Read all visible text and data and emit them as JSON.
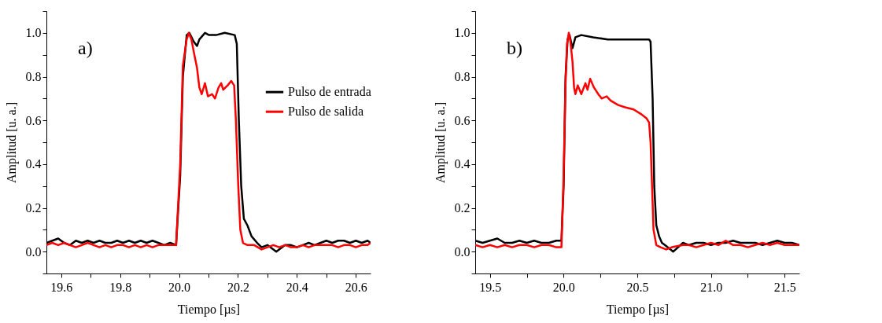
{
  "chart_data": [
    {
      "type": "line",
      "xlabel": "Tiempo [µs]",
      "ylabel": "Amplitud [u. a.]",
      "annotations": [
        "a)"
      ],
      "legend": "top right",
      "grid": false,
      "xlim": [
        19.55,
        20.65
      ],
      "ylim": [
        -0.1,
        1.1
      ],
      "xticks": [
        19.6,
        {
          "value": 19.7,
          "label": null
        },
        19.8,
        {
          "value": 19.9,
          "label": null
        },
        {
          "value": 20.0,
          "label": "20.0"
        },
        {
          "value": 20.1,
          "label": null
        },
        20.2,
        {
          "value": 20.3,
          "label": null
        },
        20.4,
        {
          "value": 20.5,
          "label": null
        },
        20.6
      ],
      "yticks": [
        {
          "value": -0.1,
          "label": null
        },
        {
          "value": 0,
          "label": "0.0"
        },
        {
          "value": 0.1,
          "label": null
        },
        0.2,
        {
          "value": 0.3,
          "label": null
        },
        0.4,
        {
          "value": 0.5,
          "label": null
        },
        0.6,
        {
          "value": 0.7,
          "label": null
        },
        0.8,
        {
          "value": 0.9,
          "label": null
        },
        {
          "value": 1.0,
          "label": "1.0"
        },
        {
          "value": 1.1,
          "label": null
        }
      ],
      "series": [
        {
          "name": "Pulso de entrada",
          "color": "#000000",
          "x": [
            19.55,
            19.57,
            19.59,
            19.61,
            19.63,
            19.65,
            19.67,
            19.69,
            19.71,
            19.73,
            19.75,
            19.77,
            19.79,
            19.81,
            19.83,
            19.85,
            19.87,
            19.89,
            19.91,
            19.93,
            19.95,
            19.97,
            19.99,
            20.004,
            20.013,
            20.026,
            20.035,
            20.05,
            20.061,
            20.069,
            20.088,
            20.102,
            20.126,
            20.155,
            20.189,
            20.196,
            20.203,
            20.211,
            20.22,
            20.232,
            20.246,
            20.265,
            20.28,
            20.3,
            20.33,
            20.36,
            20.38,
            20.4,
            20.42,
            20.44,
            20.46,
            20.48,
            20.5,
            20.52,
            20.54,
            20.56,
            20.58,
            20.6,
            20.62,
            20.64,
            20.65
          ],
          "values": [
            0.04,
            0.05,
            0.06,
            0.04,
            0.03,
            0.05,
            0.04,
            0.05,
            0.04,
            0.05,
            0.04,
            0.04,
            0.05,
            0.04,
            0.05,
            0.04,
            0.05,
            0.04,
            0.05,
            0.04,
            0.03,
            0.04,
            0.03,
            0.35,
            0.8,
            0.99,
            1.0,
            0.96,
            0.94,
            0.97,
            1.0,
            0.99,
            0.99,
            1.0,
            0.99,
            0.95,
            0.6,
            0.3,
            0.15,
            0.12,
            0.07,
            0.04,
            0.02,
            0.03,
            0.0,
            0.03,
            0.03,
            0.02,
            0.03,
            0.04,
            0.03,
            0.04,
            0.05,
            0.04,
            0.05,
            0.05,
            0.04,
            0.05,
            0.04,
            0.05,
            0.04
          ]
        },
        {
          "name": "Pulso de salida",
          "color": "#ff0000",
          "x": [
            19.55,
            19.57,
            19.59,
            19.61,
            19.63,
            19.65,
            19.67,
            19.69,
            19.71,
            19.73,
            19.75,
            19.77,
            19.79,
            19.81,
            19.83,
            19.85,
            19.87,
            19.89,
            19.91,
            19.93,
            19.95,
            19.97,
            19.99,
            20.004,
            20.013,
            20.026,
            20.033,
            20.042,
            20.052,
            20.061,
            20.069,
            20.077,
            20.088,
            20.098,
            20.112,
            20.122,
            20.134,
            20.143,
            20.15,
            20.165,
            20.177,
            20.187,
            20.193,
            20.201,
            20.208,
            20.217,
            20.232,
            20.255,
            20.28,
            20.3,
            20.32,
            20.34,
            20.36,
            20.38,
            20.4,
            20.42,
            20.44,
            20.46,
            20.48,
            20.5,
            20.52,
            20.54,
            20.56,
            20.58,
            20.6,
            20.62,
            20.64,
            20.65
          ],
          "values": [
            0.03,
            0.04,
            0.03,
            0.04,
            0.03,
            0.02,
            0.03,
            0.04,
            0.03,
            0.02,
            0.03,
            0.02,
            0.03,
            0.03,
            0.02,
            0.03,
            0.02,
            0.03,
            0.02,
            0.03,
            0.03,
            0.03,
            0.03,
            0.4,
            0.85,
            0.97,
            1.0,
            0.97,
            0.9,
            0.84,
            0.75,
            0.72,
            0.77,
            0.71,
            0.72,
            0.7,
            0.75,
            0.77,
            0.74,
            0.76,
            0.78,
            0.76,
            0.6,
            0.3,
            0.1,
            0.04,
            0.03,
            0.03,
            0.01,
            0.02,
            0.03,
            0.02,
            0.03,
            0.02,
            0.02,
            0.03,
            0.02,
            0.03,
            0.03,
            0.03,
            0.03,
            0.02,
            0.03,
            0.03,
            0.02,
            0.03,
            0.03,
            0.04
          ]
        }
      ]
    },
    {
      "type": "line",
      "xlabel": "Tiempo [µs]",
      "ylabel": "Amplitud [u. a.]",
      "annotations": [
        "b)"
      ],
      "legend": "top right",
      "grid": false,
      "xlim": [
        19.4,
        21.6
      ],
      "ylim": [
        -0.1,
        1.1
      ],
      "xticks": [
        19.5,
        {
          "value": 19.75,
          "label": null
        },
        {
          "value": 20.0,
          "label": "20.0"
        },
        {
          "value": 20.25,
          "label": null
        },
        20.5,
        {
          "value": 20.75,
          "label": null
        },
        {
          "value": 21.0,
          "label": "21.0"
        },
        {
          "value": 21.25,
          "label": null
        },
        21.5
      ],
      "yticks": [
        {
          "value": -0.1,
          "label": null
        },
        {
          "value": 0,
          "label": "0.0"
        },
        {
          "value": 0.1,
          "label": null
        },
        0.2,
        {
          "value": 0.3,
          "label": null
        },
        0.4,
        {
          "value": 0.5,
          "label": null
        },
        0.6,
        {
          "value": 0.7,
          "label": null
        },
        0.8,
        {
          "value": 0.9,
          "label": null
        },
        {
          "value": 1.0,
          "label": "1.0"
        },
        {
          "value": 1.1,
          "label": null
        }
      ],
      "series": [
        {
          "name": "Pulso de entrada",
          "color": "#000000",
          "x": [
            19.4,
            19.45,
            19.5,
            19.55,
            19.6,
            19.65,
            19.7,
            19.75,
            19.8,
            19.85,
            19.9,
            19.95,
            19.985,
            20.0,
            20.013,
            20.027,
            20.04,
            20.06,
            20.08,
            20.12,
            20.2,
            20.3,
            20.4,
            20.5,
            20.58,
            20.59,
            20.604,
            20.615,
            20.629,
            20.648,
            20.667,
            20.687,
            20.744,
            20.81,
            20.85,
            20.9,
            20.95,
            21.0,
            21.05,
            21.1,
            21.15,
            21.2,
            21.25,
            21.3,
            21.35,
            21.4,
            21.45,
            21.5,
            21.55,
            21.6
          ],
          "values": [
            0.05,
            0.04,
            0.05,
            0.06,
            0.04,
            0.04,
            0.05,
            0.04,
            0.05,
            0.04,
            0.04,
            0.05,
            0.05,
            0.3,
            0.8,
            0.97,
            0.99,
            0.93,
            0.98,
            0.99,
            0.98,
            0.97,
            0.97,
            0.97,
            0.97,
            0.96,
            0.7,
            0.3,
            0.12,
            0.07,
            0.04,
            0.03,
            0.0,
            0.04,
            0.03,
            0.04,
            0.04,
            0.03,
            0.04,
            0.04,
            0.05,
            0.04,
            0.04,
            0.04,
            0.03,
            0.04,
            0.05,
            0.04,
            0.04,
            0.03
          ]
        },
        {
          "name": "Pulso de salida",
          "color": "#ff0000",
          "x": [
            19.4,
            19.45,
            19.5,
            19.55,
            19.6,
            19.65,
            19.7,
            19.75,
            19.8,
            19.85,
            19.9,
            19.95,
            19.985,
            20.0,
            20.012,
            20.023,
            20.035,
            20.046,
            20.06,
            20.071,
            20.08,
            20.096,
            20.12,
            20.148,
            20.162,
            20.18,
            20.206,
            20.235,
            20.258,
            20.292,
            20.32,
            20.37,
            20.417,
            20.475,
            20.523,
            20.562,
            20.58,
            20.59,
            20.6,
            20.61,
            20.629,
            20.658,
            20.696,
            20.735,
            20.81,
            20.85,
            20.9,
            20.95,
            21.0,
            21.05,
            21.1,
            21.15,
            21.2,
            21.25,
            21.3,
            21.35,
            21.4,
            21.45,
            21.5,
            21.55,
            21.6
          ],
          "values": [
            0.03,
            0.02,
            0.03,
            0.02,
            0.03,
            0.02,
            0.03,
            0.03,
            0.02,
            0.03,
            0.03,
            0.02,
            0.02,
            0.35,
            0.75,
            0.95,
            1.0,
            0.96,
            0.87,
            0.75,
            0.72,
            0.76,
            0.72,
            0.77,
            0.74,
            0.79,
            0.75,
            0.72,
            0.7,
            0.71,
            0.69,
            0.67,
            0.66,
            0.65,
            0.63,
            0.61,
            0.59,
            0.5,
            0.3,
            0.1,
            0.03,
            0.02,
            0.01,
            0.02,
            0.03,
            0.03,
            0.02,
            0.03,
            0.04,
            0.03,
            0.05,
            0.03,
            0.03,
            0.02,
            0.03,
            0.04,
            0.03,
            0.04,
            0.03,
            0.03,
            0.03
          ]
        }
      ]
    }
  ]
}
